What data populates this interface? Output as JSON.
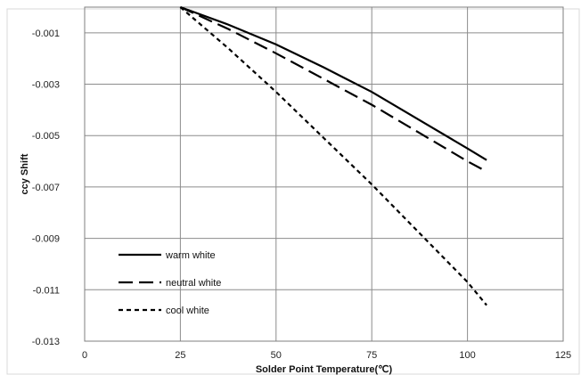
{
  "chart_data": {
    "type": "line",
    "xlabel": "Solder Point Temperature(℃)",
    "ylabel": "ccy Shift",
    "xlim": [
      0,
      125
    ],
    "ylim": [
      -0.013,
      0.0
    ],
    "xticks": [
      0,
      25,
      50,
      75,
      100,
      125
    ],
    "yticks": [
      -0.001,
      -0.003,
      -0.005,
      -0.007,
      -0.009,
      -0.011,
      -0.013
    ],
    "ytick_labels": [
      "-0.001",
      "-0.003",
      "-0.005",
      "-0.007",
      "-0.009",
      "-0.011",
      "-0.013"
    ],
    "xtick_labels": [
      "0",
      "25",
      "50",
      "75",
      "100",
      "125"
    ],
    "grid": true,
    "legend_position": "bottom-left",
    "series": [
      {
        "name": "warm white",
        "style": "solid",
        "color": "#000000",
        "x": [
          25,
          37.5,
          50,
          62.5,
          75,
          87.5,
          100,
          105
        ],
        "y": [
          0.0,
          -0.00068,
          -0.00145,
          -0.00235,
          -0.0033,
          -0.0044,
          -0.0055,
          -0.00595
        ]
      },
      {
        "name": "neutral white",
        "style": "long-dash",
        "color": "#000000",
        "x": [
          25,
          37.5,
          50,
          62.5,
          75,
          87.5,
          100,
          105
        ],
        "y": [
          0.0,
          -0.00085,
          -0.0018,
          -0.0028,
          -0.0038,
          -0.0049,
          -0.006,
          -0.0064
        ]
      },
      {
        "name": "cool white",
        "style": "short-dash",
        "color": "#000000",
        "x": [
          25,
          37.5,
          50,
          62.5,
          75,
          87.5,
          100,
          105
        ],
        "y": [
          0.0,
          -0.0016,
          -0.0033,
          -0.0051,
          -0.0069,
          -0.0088,
          -0.0107,
          -0.0116
        ]
      }
    ]
  }
}
